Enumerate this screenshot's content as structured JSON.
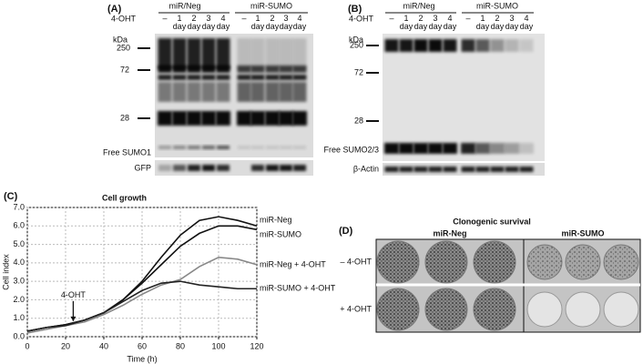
{
  "panel_a": {
    "label": "(A)",
    "treatment": "4-OHT",
    "groups": [
      "miR/Neg",
      "miR-SUMO"
    ],
    "lanes": [
      "–",
      "1 day",
      "2 day",
      "3 day",
      "4 day",
      "–",
      "1 day",
      "2 day",
      "3 day",
      "4 day"
    ],
    "unit": "kDa",
    "markers": [
      250,
      72,
      28
    ],
    "bands": [
      "Free SUMO1",
      "GFP"
    ]
  },
  "panel_b": {
    "label": "(B)",
    "treatment": "4-OHT",
    "groups": [
      "miR/Neg",
      "miR-SUMO"
    ],
    "lanes": [
      "–",
      "1 day",
      "2 day",
      "3 day",
      "4 day",
      "–",
      "1 day",
      "2 day",
      "3 day",
      "4 day"
    ],
    "unit": "kDa",
    "markers": [
      250,
      72,
      28
    ],
    "bands": [
      "Free SUMO2/3",
      "β-Actin"
    ]
  },
  "chart_data": {
    "type": "line",
    "panel_label": "(C)",
    "title": "Cell growth",
    "xlabel": "Time (h)",
    "ylabel": "Cell index",
    "x": [
      0,
      10,
      20,
      30,
      40,
      50,
      60,
      70,
      80,
      90,
      100,
      110,
      120
    ],
    "series": [
      {
        "name": "miR-Neg",
        "color": "#111111",
        "values": [
          0.3,
          0.5,
          0.65,
          0.9,
          1.3,
          2.0,
          3.0,
          4.3,
          5.5,
          6.3,
          6.5,
          6.3,
          6.0
        ]
      },
      {
        "name": "miR-SUMO",
        "color": "#111111",
        "values": [
          0.3,
          0.5,
          0.65,
          0.9,
          1.3,
          2.0,
          2.9,
          3.9,
          4.9,
          5.6,
          6.0,
          6.0,
          5.8
        ]
      },
      {
        "name": "miR-Neg + 4-OHT",
        "color": "#888888",
        "values": [
          0.2,
          0.4,
          0.6,
          0.8,
          1.2,
          1.7,
          2.3,
          2.8,
          3.1,
          3.8,
          4.3,
          4.2,
          3.9
        ]
      },
      {
        "name": "miR-SUMO + 4-OHT",
        "color": "#222222",
        "values": [
          0.3,
          0.5,
          0.6,
          0.9,
          1.3,
          1.9,
          2.5,
          2.9,
          3.0,
          2.8,
          2.7,
          2.6,
          2.6
        ]
      }
    ],
    "xlim": [
      0,
      120
    ],
    "ylim": [
      0,
      7
    ],
    "xticks": [
      0,
      20,
      40,
      60,
      80,
      100,
      120
    ],
    "yticks": [
      {
        "value": 0,
        "label": "0.0"
      },
      {
        "value": 1,
        "label": "1.0"
      },
      {
        "value": 2,
        "label": "2.0"
      },
      {
        "value": 3,
        "label": "3.0"
      },
      {
        "value": 4,
        "label": "4.0"
      },
      {
        "value": 5,
        "label": "5.0"
      },
      {
        "value": 6,
        "label": "6.0"
      },
      {
        "value": 7,
        "label": "7.0"
      }
    ],
    "grid": true,
    "annotations": [
      {
        "text": "4-OHT",
        "x": 24
      }
    ]
  },
  "panel_d": {
    "label": "(D)",
    "title": "Clonogenic survival",
    "columns": [
      "miR-Neg",
      "miR-SUMO"
    ],
    "rows": [
      "– 4-OHT",
      "+ 4-OHT"
    ]
  }
}
